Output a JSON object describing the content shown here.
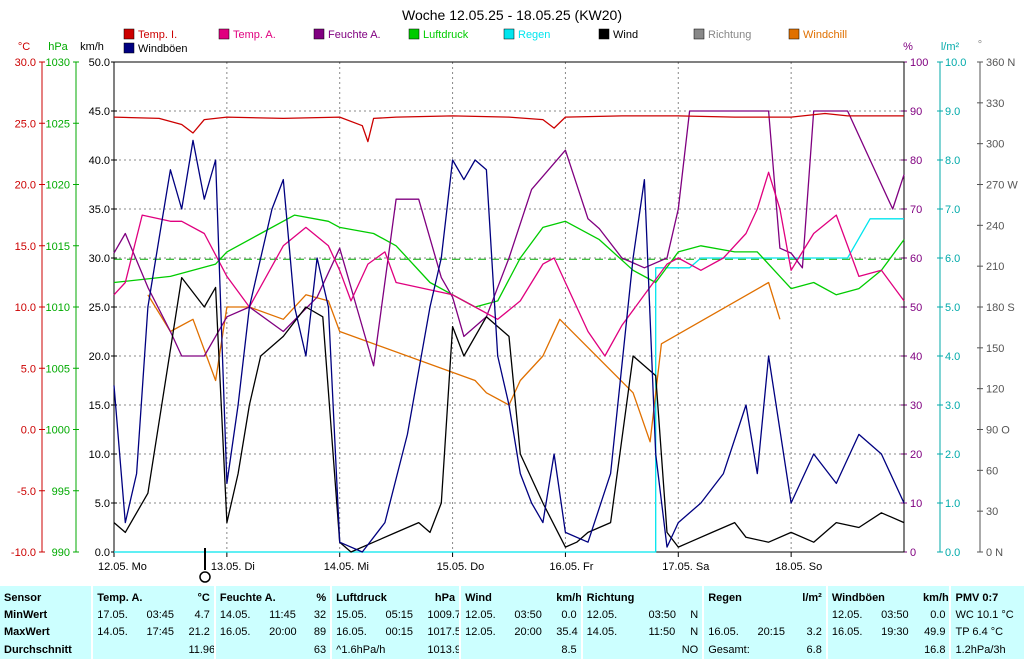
{
  "chart_data": {
    "type": "line",
    "title": "Woche 12.05.25 - 18.05.25 (KW20)",
    "legend": [
      {
        "name": "Temp. I.",
        "color": "#cc0000"
      },
      {
        "name": "Temp. A.",
        "color": "#e0007f"
      },
      {
        "name": "Feuchte A.",
        "color": "#800080"
      },
      {
        "name": "Luftdruck",
        "color": "#00cc00"
      },
      {
        "name": "Regen",
        "color": "#00e5ee"
      },
      {
        "name": "Wind",
        "color": "#000000"
      },
      {
        "name": "Richtung",
        "color": "#888888"
      },
      {
        "name": "Windchill",
        "color": "#e07000"
      },
      {
        "name": "Windböen",
        "color": "#000080"
      }
    ],
    "unit_labels": [
      {
        "text": "°C",
        "color": "#cc0000"
      },
      {
        "text": "hPa",
        "color": "#00aa00"
      },
      {
        "text": "km/h",
        "color": "#000000"
      },
      {
        "text": "%",
        "color": "#800080"
      },
      {
        "text": "l/m²",
        "color": "#00aaaa"
      },
      {
        "text": "°",
        "color": "#888888"
      }
    ],
    "axes": {
      "temperature": {
        "unit": "°C",
        "range": [
          -10,
          30
        ],
        "ticks": [
          "-10.0",
          "-5.0",
          "0.0",
          "5.0",
          "10.0",
          "15.0",
          "20.0",
          "25.0",
          "30.0"
        ],
        "color": "#cc0000"
      },
      "pressure": {
        "unit": "hPa",
        "range": [
          990,
          1030
        ],
        "ticks": [
          "990",
          "995",
          "1000",
          "1005",
          "1010",
          "1015",
          "1020",
          "1025",
          "1030"
        ],
        "color": "#00aa00"
      },
      "wind": {
        "unit": "km/h",
        "range": [
          0,
          50
        ],
        "ticks": [
          "0.0",
          "5.0",
          "10.0",
          "15.0",
          "20.0",
          "25.0",
          "30.0",
          "35.0",
          "40.0",
          "45.0",
          "50.0"
        ],
        "color": "#000000"
      },
      "humidity": {
        "unit": "%",
        "range": [
          0,
          100
        ],
        "ticks": [
          "0",
          "10",
          "20",
          "30",
          "40",
          "50",
          "60",
          "70",
          "80",
          "90",
          "100"
        ],
        "color": "#800080"
      },
      "rain": {
        "unit": "l/m²",
        "range": [
          0,
          10
        ],
        "ticks": [
          "0.0",
          "1.0",
          "2.0",
          "3.0",
          "4.0",
          "5.0",
          "6.0",
          "7.0",
          "8.0",
          "9.0",
          "10.0"
        ],
        "color": "#00aaaa"
      },
      "direction": {
        "unit": "°",
        "range": [
          0,
          360
        ],
        "ticks": [
          "0 N",
          "30",
          "60",
          "90 O",
          "120",
          "150",
          "180 S",
          "210",
          "240",
          "270 W",
          "300",
          "330",
          "360 N"
        ],
        "color": "#555555"
      }
    },
    "x_labels": [
      "12.05. Mo",
      "13.05. Di",
      "14.05. Mi",
      "15.05. Do",
      "16.05. Fr",
      "17.05. Sa",
      "18.05. So"
    ],
    "x_range_days": [
      0,
      7
    ],
    "grid": true,
    "pressure_mean_line": 1013.9,
    "series": [
      {
        "name": "Temp. I.",
        "axis": "temperature",
        "color": "#cc0000",
        "x": [
          0,
          0.4,
          0.6,
          0.7,
          0.8,
          1.0,
          1.5,
          2.0,
          2.2,
          2.25,
          2.3,
          2.5,
          3.0,
          3.5,
          3.8,
          3.9,
          4.0,
          4.5,
          5.0,
          5.5,
          6.0,
          6.3,
          6.5,
          7.0
        ],
        "values": [
          25.5,
          25.4,
          24.9,
          24.2,
          25.3,
          25.5,
          25.4,
          25.5,
          24.8,
          23.5,
          25.4,
          25.5,
          25.6,
          25.5,
          25.3,
          24.6,
          25.5,
          25.6,
          25.6,
          25.5,
          25.5,
          25.8,
          25.6,
          25.6
        ]
      },
      {
        "name": "Temp. A.",
        "axis": "temperature",
        "color": "#e0007f",
        "x": [
          0,
          0.1,
          0.25,
          0.5,
          0.6,
          0.8,
          1.0,
          1.2,
          1.5,
          1.7,
          1.9,
          2.0,
          2.1,
          2.25,
          2.4,
          2.5,
          3.0,
          3.2,
          3.4,
          3.6,
          3.8,
          3.9,
          4.0,
          4.2,
          4.35,
          4.5,
          4.7,
          4.9,
          5.0,
          5.2,
          5.4,
          5.6,
          5.7,
          5.8,
          5.9,
          6.0,
          6.2,
          6.4,
          6.6,
          6.8,
          7.0
        ],
        "values": [
          11.0,
          12.0,
          17.5,
          17.0,
          17.0,
          16.0,
          12.5,
          10.0,
          15.0,
          16.5,
          15.0,
          13.0,
          10.5,
          13.5,
          14.5,
          12.0,
          11.0,
          10.0,
          9.0,
          10.5,
          13.5,
          14.0,
          12.0,
          8.0,
          6.0,
          8.5,
          11.0,
          13.5,
          14.0,
          13.0,
          14.0,
          16.0,
          18.0,
          21.0,
          18.0,
          13.0,
          16.0,
          17.5,
          12.5,
          13.0,
          10.5
        ]
      },
      {
        "name": "Feuchte A.",
        "axis": "humidity",
        "color": "#800080",
        "x": [
          0,
          0.1,
          0.3,
          0.5,
          0.6,
          0.8,
          1.0,
          1.2,
          1.5,
          1.8,
          2.0,
          2.15,
          2.3,
          2.5,
          2.7,
          2.9,
          3.0,
          3.1,
          3.3,
          3.5,
          3.7,
          4.0,
          4.2,
          4.3,
          4.5,
          4.7,
          4.9,
          5.0,
          5.1,
          5.2,
          5.5,
          5.8,
          5.9,
          6.0,
          6.1,
          6.2,
          6.5,
          6.7,
          6.9,
          7.0
        ],
        "values": [
          61,
          65,
          54,
          45,
          40,
          40,
          48,
          50,
          45,
          52,
          62,
          50,
          38,
          72,
          72,
          56,
          52,
          44,
          48,
          60,
          74,
          82,
          68,
          66,
          60,
          58,
          60,
          70,
          90,
          90,
          90,
          90,
          62,
          61,
          58,
          90,
          90,
          80,
          70,
          77
        ]
      },
      {
        "name": "Luftdruck",
        "axis": "pressure",
        "color": "#00cc00",
        "x": [
          0,
          0.5,
          0.9,
          1.0,
          1.3,
          1.6,
          1.9,
          2.0,
          2.3,
          2.5,
          2.8,
          3.0,
          3.2,
          3.4,
          3.6,
          3.8,
          4.0,
          4.3,
          4.6,
          4.8,
          5.0,
          5.2,
          5.5,
          5.7,
          5.9,
          6.0,
          6.2,
          6.4,
          6.6,
          6.8,
          7.0
        ],
        "values": [
          1012.0,
          1012.5,
          1013.5,
          1014.5,
          1016.0,
          1017.5,
          1017.0,
          1016.5,
          1016.0,
          1015.0,
          1012.0,
          1011.0,
          1010.0,
          1010.5,
          1014.0,
          1016.5,
          1017.0,
          1015.5,
          1013.0,
          1012.0,
          1014.5,
          1015.0,
          1014.5,
          1014.5,
          1012.5,
          1011.5,
          1012.0,
          1011.0,
          1011.5,
          1013.0,
          1015.5
        ]
      },
      {
        "name": "Regen",
        "axis": "rain",
        "color": "#00e5ee",
        "x": [
          0,
          4.8,
          4.8,
          5.1,
          5.2,
          5.8,
          5.8,
          6.5,
          6.55,
          6.7,
          7.0
        ],
        "values": [
          0,
          0,
          5.8,
          5.8,
          6.0,
          6.0,
          6.0,
          6.0,
          6.2,
          6.8,
          6.8
        ]
      },
      {
        "name": "Wind",
        "axis": "wind",
        "color": "#000000",
        "x": [
          0,
          0.1,
          0.3,
          0.6,
          0.8,
          0.9,
          1.0,
          1.1,
          1.2,
          1.3,
          1.5,
          1.7,
          1.85,
          2.0,
          2.1,
          2.3,
          2.5,
          2.7,
          2.8,
          2.9,
          3.0,
          3.1,
          3.3,
          3.5,
          3.6,
          3.8,
          4.0,
          4.1,
          4.2,
          4.4,
          4.6,
          4.8,
          4.9,
          5.0,
          5.1,
          5.3,
          5.5,
          5.6,
          5.8,
          6.0,
          6.2,
          6.4,
          6.6,
          6.8,
          7.0
        ],
        "values": [
          3.0,
          2.0,
          6.0,
          28.0,
          25.0,
          27.0,
          3.0,
          8.0,
          15.0,
          20.0,
          22.0,
          25.0,
          24.0,
          1.0,
          0.0,
          1.0,
          2.0,
          3.0,
          2.0,
          5.0,
          23.0,
          20.0,
          24.0,
          22.0,
          10.0,
          5.0,
          0.5,
          1.0,
          2.0,
          3.0,
          20.0,
          18.0,
          2.0,
          0.5,
          1.0,
          2.0,
          3.0,
          1.5,
          1.0,
          2.0,
          1.0,
          3.0,
          2.5,
          4.0,
          3.0
        ]
      },
      {
        "name": "Windchill",
        "axis": "temperature",
        "color": "#e07000",
        "x": [
          0.3,
          0.5,
          0.7,
          0.9,
          1.0,
          1.2,
          1.5,
          1.7,
          1.9,
          2.0,
          3.2,
          3.3,
          3.5,
          3.6,
          3.8,
          3.95,
          4.6,
          4.75,
          4.85,
          5.8,
          5.9
        ],
        "values": [
          11.0,
          8.0,
          9.0,
          4.0,
          10.0,
          10.0,
          9.0,
          11.0,
          10.5,
          8.0,
          4.0,
          3.0,
          2.0,
          4.0,
          6.0,
          9.0,
          3.0,
          -1.0,
          7.0,
          12.0,
          9.0
        ]
      },
      {
        "name": "Windböen",
        "axis": "wind",
        "color": "#000080",
        "x": [
          0,
          0.1,
          0.2,
          0.3,
          0.4,
          0.5,
          0.6,
          0.7,
          0.8,
          0.9,
          1.0,
          1.1,
          1.2,
          1.3,
          1.4,
          1.5,
          1.6,
          1.7,
          1.8,
          1.9,
          2.0,
          2.2,
          2.4,
          2.6,
          2.8,
          2.9,
          3.0,
          3.1,
          3.2,
          3.3,
          3.4,
          3.5,
          3.6,
          3.7,
          3.8,
          3.9,
          4.0,
          4.2,
          4.4,
          4.6,
          4.7,
          4.8,
          4.9,
          5.0,
          5.2,
          5.4,
          5.6,
          5.7,
          5.8,
          6.0,
          6.2,
          6.4,
          6.6,
          6.8,
          7.0
        ],
        "values": [
          17.0,
          3.0,
          8.0,
          25.0,
          32.0,
          39.0,
          35.0,
          42.0,
          36.0,
          40.0,
          7.0,
          15.0,
          25.0,
          30.0,
          35.0,
          38.0,
          25.0,
          20.0,
          30.0,
          25.0,
          1.0,
          0.0,
          3.0,
          12.0,
          25.0,
          30.0,
          40.0,
          38.0,
          40.0,
          39.0,
          20.0,
          15.0,
          8.0,
          5.0,
          3.0,
          10.0,
          2.0,
          1.0,
          8.0,
          30.0,
          38.0,
          10.0,
          0.5,
          3.0,
          5.0,
          8.0,
          15.0,
          8.0,
          20.0,
          5.0,
          10.0,
          7.0,
          12.0,
          10.0,
          5.0
        ]
      }
    ]
  },
  "stats": {
    "header": {
      "sensor": "Sensor",
      "temp_label": "Temp. A.",
      "temp_unit": "°C",
      "hum_label": "Feuchte A.",
      "hum_unit": "%",
      "press_label": "Luftdruck",
      "press_unit": "hPa",
      "wind_label": "Wind",
      "wind_unit": "km/h",
      "dir_label": "Richtung",
      "rain_label": "Regen",
      "rain_unit": "l/m²",
      "gust_label": "Windböen",
      "gust_unit": "km/h",
      "pmv_label": "PMV 0:7"
    },
    "min": {
      "label": "MinWert",
      "temp_date": "17.05.",
      "temp_time": "03:45",
      "temp_val": "4.7",
      "hum_date": "14.05.",
      "hum_time": "11:45",
      "hum_val": "32",
      "press_date": "15.05.",
      "press_time": "05:15",
      "press_val": "1009.7",
      "wind_date": "12.05.",
      "wind_time": "03:50",
      "wind_val": "0.0",
      "dir_date": "12.05.",
      "dir_time": "03:50",
      "dir_val": "N",
      "gust_date": "12.05.",
      "gust_time": "03:50",
      "gust_val": "0.0",
      "pmv": "WC 10.1 °C"
    },
    "max": {
      "label": "MaxWert",
      "temp_date": "14.05.",
      "temp_time": "17:45",
      "temp_val": "21.2",
      "hum_date": "16.05.",
      "hum_time": "20:00",
      "hum_val": "89",
      "press_date": "16.05.",
      "press_time": "00:15",
      "press_val": "1017.5",
      "wind_date": "12.05.",
      "wind_time": "20:00",
      "wind_val": "35.4",
      "dir_date": "14.05.",
      "dir_time": "11:50",
      "dir_val": "N",
      "rain_date": "16.05.",
      "rain_time": "20:15",
      "rain_val": "3.2",
      "gust_date": "16.05.",
      "gust_time": "19:30",
      "gust_val": "49.9",
      "pmv": "TP 6.4 °C"
    },
    "avg": {
      "label": "Durchschnitt",
      "temp_val": "11.96",
      "hum_val": "63",
      "press_trend": "^1.6hPa/h",
      "press_val": "1013.9",
      "wind_val": "8.5",
      "dir_val": "NO",
      "rain_label": "Gesamt:",
      "rain_val": "6.8",
      "gust_val": "16.8",
      "pmv": "1.2hPa/3h"
    }
  }
}
